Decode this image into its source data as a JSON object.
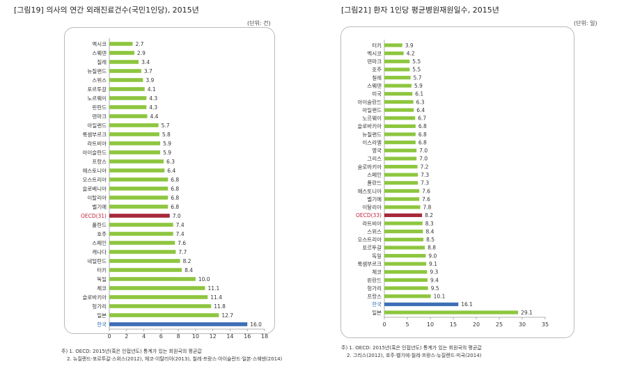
{
  "chart_data": [
    {
      "type": "bar",
      "title": "[그림19] 의사의 연간 외래진료건수(국민1인당), 2015년",
      "unit": "(단위: 건)",
      "categories": [
        "멕시코",
        "스웨덴",
        "칠레",
        "뉴질랜드",
        "스위스",
        "포르투갈",
        "노르웨이",
        "핀란드",
        "덴마크",
        "아일랜드",
        "룩셈부르크",
        "라트비아",
        "아이슬란드",
        "프랑스",
        "에스토니아",
        "오스트리아",
        "슬로베니아",
        "이탈리아",
        "벨기에",
        "OECD(31)",
        "폴란드",
        "호주",
        "스페인",
        "캐나다",
        "네덜란드",
        "터키",
        "독일",
        "체코",
        "슬로바키아",
        "헝가리",
        "일본",
        "한국"
      ],
      "values": [
        2.7,
        2.9,
        3.4,
        3.7,
        3.9,
        4.1,
        4.3,
        4.3,
        4.4,
        5.7,
        5.8,
        5.9,
        5.9,
        6.3,
        6.4,
        6.8,
        6.8,
        6.8,
        6.8,
        7.0,
        7.4,
        7.4,
        7.6,
        7.7,
        8.2,
        8.4,
        10.0,
        11.1,
        11.4,
        11.8,
        12.7,
        16.0
      ],
      "value_labels": [
        "2.7",
        "2.9",
        "3.4",
        "3.7",
        "3.9",
        "4.1",
        "4.3",
        "4.3",
        "4.4",
        "5.7",
        "5.8",
        "5.9",
        "5.9",
        "6.3",
        "6.4",
        "6.8",
        "6.8",
        "6.8",
        "6.8",
        "7.0",
        "7.4",
        "7.4",
        "7.6",
        "7.7",
        "8.2",
        "8.4",
        "10.0",
        "11.1",
        "11.4",
        "11.8",
        "12.7",
        "16.0"
      ],
      "highlight": {
        "OECD(31)": "oecd",
        "한국": "korea"
      },
      "xlim": [
        0,
        18
      ],
      "xticks": [
        "0",
        "2",
        "4",
        "6",
        "8",
        "10",
        "12",
        "14",
        "16",
        "18"
      ],
      "notes": [
        "주) 1. OECD: 2015년(혹은 인접년도) 통계가 있는 회원국의 평균값",
        "2. 뉴질랜드·포르투갈·스위스(2012), 체코·이탈리아(2013), 칠레·프랑스·아이슬란드·일본·스웨덴(2014)"
      ]
    },
    {
      "type": "bar",
      "title": "[그림21] 환자 1인당 평균병원재원일수, 2015년",
      "unit": "(단위: 일)",
      "categories": [
        "터키",
        "멕시코",
        "덴마크",
        "호주",
        "칠레",
        "스웨덴",
        "미국",
        "아이슬란드",
        "아일랜드",
        "노르웨이",
        "슬로바키아",
        "뉴질랜드",
        "이스라엘",
        "영국",
        "그리스",
        "슬로바키아",
        "스페인",
        "폴란드",
        "에스토니아",
        "벨기에",
        "이탈리아",
        "OECD(33)",
        "라트비아",
        "스위스",
        "오스트리아",
        "포르투갈",
        "독일",
        "룩셈부르크",
        "체코",
        "핀란드",
        "헝가리",
        "프랑스",
        "한국",
        "일본"
      ],
      "values": [
        3.9,
        4.2,
        5.5,
        5.5,
        5.7,
        5.9,
        6.1,
        6.3,
        6.4,
        6.7,
        6.8,
        6.8,
        6.8,
        7.0,
        7.0,
        7.2,
        7.3,
        7.3,
        7.6,
        7.6,
        7.8,
        8.2,
        8.3,
        8.4,
        8.5,
        8.8,
        9.0,
        9.1,
        9.3,
        9.4,
        9.5,
        10.1,
        16.1,
        29.1
      ],
      "value_labels": [
        "3.9",
        "4.2",
        "5.5",
        "5.5",
        "5.7",
        "5.9",
        "6.1",
        "6.3",
        "6.4",
        "6.7",
        "6.8",
        "6.8",
        "6.8",
        "7.0",
        "7.0",
        "7.2",
        "7.3",
        "7.3",
        "7.6",
        "7.6",
        "7.8",
        "8.2",
        "8.3",
        "8.4",
        "8.5",
        "8.8",
        "9.0",
        "9.1",
        "9.3",
        "9.4",
        "9.5",
        "10.1",
        "16.1",
        "29.1"
      ],
      "highlight": {
        "OECD(33)": "oecd",
        "한국": "korea"
      },
      "xlim": [
        0,
        35
      ],
      "xticks": [
        "0",
        "5",
        "10",
        "15",
        "20",
        "25",
        "30",
        "35"
      ],
      "notes": [
        "주) 1. OECD: 2015년(혹은 인접년도) 통계가 있는 회원국의 평균값",
        "2. 그리스(2012), 호주·벨기에·칠레·프랑스·뉴질랜드·미국(2014)"
      ]
    }
  ],
  "colors": {
    "bar": "#8dc63f",
    "oecd": "#a6283a",
    "korea": "#3d6fb6",
    "oecd_label": "#c0243c",
    "korea_label": "#2f6db5",
    "axis": "#999999"
  }
}
